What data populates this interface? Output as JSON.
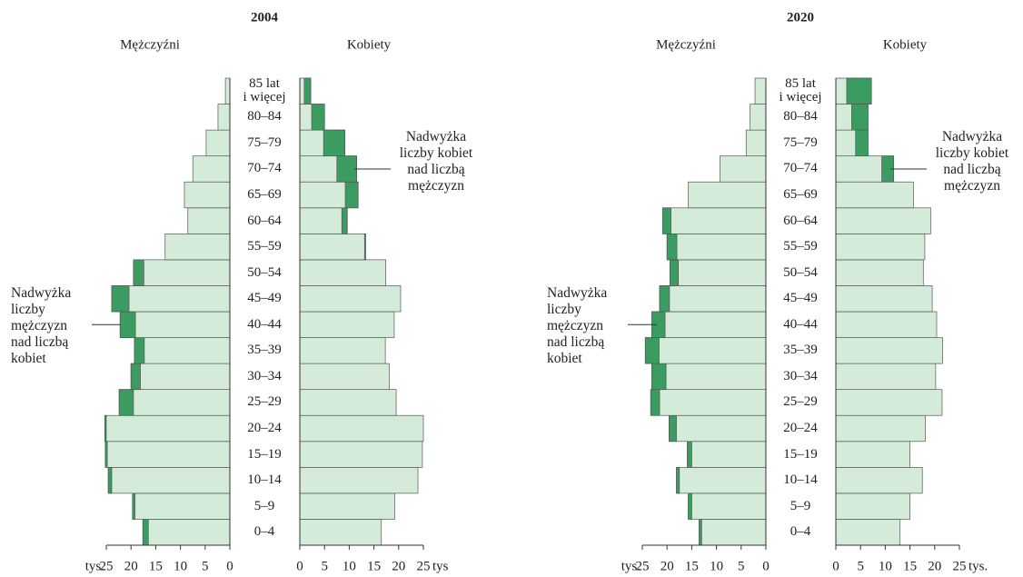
{
  "chart_data": [
    {
      "type": "population_pyramid",
      "title": "2004",
      "categories": [
        "0–4",
        "5–9",
        "10–14",
        "15–19",
        "20–24",
        "25–29",
        "30–34",
        "35–39",
        "40–44",
        "45–49",
        "50–54",
        "55–59",
        "60–64",
        "65–69",
        "70–74",
        "75–79",
        "80–84",
        "85 lat\ni więcej"
      ],
      "series": [
        {
          "name": "Mężczyźni",
          "values": [
            17.6,
            19.7,
            24.6,
            25.2,
            25.3,
            22.4,
            20.0,
            19.3,
            22.2,
            23.9,
            19.5,
            13.1,
            8.5,
            9.2,
            7.5,
            4.8,
            2.4,
            0.9
          ]
        },
        {
          "name": "Kobiety",
          "values": [
            16.5,
            19.2,
            23.9,
            24.8,
            25.0,
            19.5,
            18.1,
            17.3,
            19.1,
            20.4,
            17.4,
            13.3,
            9.6,
            11.8,
            11.5,
            9.1,
            5.0,
            2.2
          ]
        }
      ],
      "color": "#d3ebd8",
      "surplus_color": "#3a9c60",
      "xlim": [
        0,
        25
      ],
      "xticks": [
        0,
        5,
        10,
        15,
        20,
        25
      ],
      "x_unit_left": "tys.",
      "x_unit_right": "tys",
      "annotations": {
        "female_surplus": "Nadwyżka\nliczby kobiet\nnad liczbą\nmężczyzn",
        "male_surplus": "Nadwyżka\nliczby\nmężczyzn\nnad liczbą\nkobiet"
      }
    },
    {
      "type": "population_pyramid",
      "title": "2020",
      "categories": [
        "0–4",
        "5–9",
        "10–14",
        "15–19",
        "20–24",
        "25–29",
        "30–34",
        "35–39",
        "40–44",
        "45–49",
        "50–54",
        "55–59",
        "60–64",
        "65–69",
        "70–74",
        "75–79",
        "80–84",
        "85 lat\ni więcej"
      ],
      "series": [
        {
          "name": "Mężczyźni",
          "values": [
            13.5,
            15.7,
            18.1,
            15.9,
            19.6,
            23.3,
            23.1,
            24.4,
            23.1,
            21.5,
            19.4,
            20.0,
            20.9,
            15.7,
            9.3,
            4.0,
            3.2,
            2.2
          ]
        },
        {
          "name": "Kobiety",
          "values": [
            13.0,
            15.0,
            17.5,
            15.0,
            18.1,
            21.5,
            20.2,
            21.6,
            20.4,
            19.5,
            17.7,
            18.0,
            19.2,
            15.7,
            11.7,
            6.5,
            6.5,
            7.2
          ]
        }
      ],
      "color": "#d3ebd8",
      "surplus_color": "#3a9c60",
      "xlim": [
        0,
        25
      ],
      "xticks": [
        0,
        5,
        10,
        15,
        20,
        25
      ],
      "x_unit_left": "tys.",
      "x_unit_right": "tys.",
      "annotations": {
        "female_surplus": "Nadwyżka\nliczby kobiet\nnad liczbą\nmężczyzn",
        "male_surplus": "Nadwyżka\nliczby\nmężczyzn\nnad liczbą\nkobiet"
      }
    }
  ]
}
